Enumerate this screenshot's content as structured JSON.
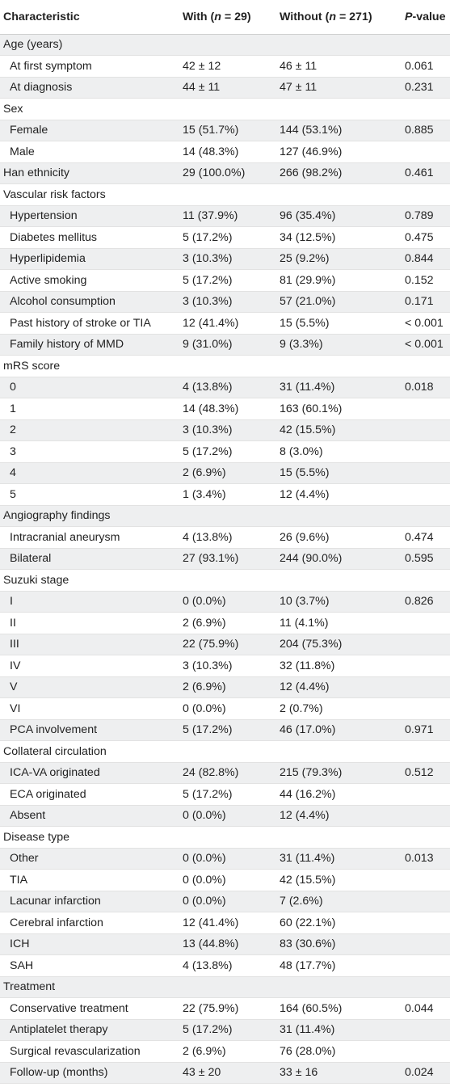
{
  "header": {
    "characteristic": "Characteristic",
    "with_prefix": "With (",
    "with_n": "n",
    "with_suffix": " = 29)",
    "without_prefix": "Without (",
    "without_n": "n",
    "without_suffix": " = 271)",
    "p_italic": "P",
    "p_suffix": "-value"
  },
  "rows": [
    {
      "label": "Age (years)",
      "type": "group",
      "with": "",
      "without": "",
      "p": ""
    },
    {
      "label": "At first symptom",
      "type": "item",
      "with": "42 ± 12",
      "without": "46 ± 11",
      "p": "0.061"
    },
    {
      "label": "At diagnosis",
      "type": "item",
      "with": "44 ± 11",
      "without": "47 ± 11",
      "p": "0.231"
    },
    {
      "label": "Sex",
      "type": "group",
      "with": "",
      "without": "",
      "p": ""
    },
    {
      "label": "Female",
      "type": "item",
      "with": "15 (51.7%)",
      "without": "144 (53.1%)",
      "p": "0.885"
    },
    {
      "label": "Male",
      "type": "item",
      "with": "14 (48.3%)",
      "without": "127 (46.9%)",
      "p": ""
    },
    {
      "label": "Han ethnicity",
      "type": "group",
      "with": "29 (100.0%)",
      "without": "266 (98.2%)",
      "p": "0.461"
    },
    {
      "label": "Vascular risk factors",
      "type": "group",
      "with": "",
      "without": "",
      "p": ""
    },
    {
      "label": "Hypertension",
      "type": "item",
      "with": "11 (37.9%)",
      "without": "96 (35.4%)",
      "p": "0.789"
    },
    {
      "label": "Diabetes mellitus",
      "type": "item",
      "with": "5 (17.2%)",
      "without": "34 (12.5%)",
      "p": "0.475"
    },
    {
      "label": "Hyperlipidemia",
      "type": "item",
      "with": "3 (10.3%)",
      "without": "25 (9.2%)",
      "p": "0.844"
    },
    {
      "label": "Active smoking",
      "type": "item",
      "with": "5 (17.2%)",
      "without": "81 (29.9%)",
      "p": "0.152"
    },
    {
      "label": "Alcohol consumption",
      "type": "item",
      "with": "3 (10.3%)",
      "without": "57 (21.0%)",
      "p": "0.171"
    },
    {
      "label": "Past history of stroke or TIA",
      "type": "item",
      "with": "12 (41.4%)",
      "without": "15 (5.5%)",
      "p": "< 0.001"
    },
    {
      "label": "Family history of MMD",
      "type": "item",
      "with": "9 (31.0%)",
      "without": "9 (3.3%)",
      "p": "< 0.001"
    },
    {
      "label": "mRS score",
      "type": "group",
      "with": "",
      "without": "",
      "p": ""
    },
    {
      "label": "0",
      "type": "item",
      "with": "4 (13.8%)",
      "without": "31 (11.4%)",
      "p": "0.018"
    },
    {
      "label": "1",
      "type": "item",
      "with": "14 (48.3%)",
      "without": "163 (60.1%)",
      "p": ""
    },
    {
      "label": "2",
      "type": "item",
      "with": "3 (10.3%)",
      "without": "42 (15.5%)",
      "p": ""
    },
    {
      "label": "3",
      "type": "item",
      "with": "5 (17.2%)",
      "without": "8 (3.0%)",
      "p": ""
    },
    {
      "label": "4",
      "type": "item",
      "with": "2 (6.9%)",
      "without": "15 (5.5%)",
      "p": ""
    },
    {
      "label": "5",
      "type": "item",
      "with": "1 (3.4%)",
      "without": "12 (4.4%)",
      "p": ""
    },
    {
      "label": "Angiography findings",
      "type": "group",
      "with": "",
      "without": "",
      "p": ""
    },
    {
      "label": "Intracranial aneurysm",
      "type": "item",
      "with": "4 (13.8%)",
      "without": "26 (9.6%)",
      "p": "0.474"
    },
    {
      "label": "Bilateral",
      "type": "item",
      "with": "27 (93.1%)",
      "without": "244 (90.0%)",
      "p": "0.595"
    },
    {
      "label": "Suzuki stage",
      "type": "group",
      "with": "",
      "without": "",
      "p": ""
    },
    {
      "label": "I",
      "type": "item",
      "with": "0 (0.0%)",
      "without": "10 (3.7%)",
      "p": "0.826"
    },
    {
      "label": "II",
      "type": "item",
      "with": "2 (6.9%)",
      "without": "11 (4.1%)",
      "p": ""
    },
    {
      "label": "III",
      "type": "item",
      "with": "22 (75.9%)",
      "without": "204 (75.3%)",
      "p": ""
    },
    {
      "label": "IV",
      "type": "item",
      "with": "3 (10.3%)",
      "without": "32 (11.8%)",
      "p": ""
    },
    {
      "label": "V",
      "type": "item",
      "with": "2 (6.9%)",
      "without": "12 (4.4%)",
      "p": ""
    },
    {
      "label": "VI",
      "type": "item",
      "with": "0 (0.0%)",
      "without": "2 (0.7%)",
      "p": ""
    },
    {
      "label": "PCA involvement",
      "type": "item",
      "with": "5 (17.2%)",
      "without": "46 (17.0%)",
      "p": "0.971"
    },
    {
      "label": "Collateral circulation",
      "type": "group",
      "with": "",
      "without": "",
      "p": ""
    },
    {
      "label": "ICA-VA originated",
      "type": "item",
      "with": "24 (82.8%)",
      "without": "215 (79.3%)",
      "p": "0.512"
    },
    {
      "label": "ECA originated",
      "type": "item",
      "with": "5 (17.2%)",
      "without": "44 (16.2%)",
      "p": ""
    },
    {
      "label": "Absent",
      "type": "item",
      "with": "0 (0.0%)",
      "without": "12 (4.4%)",
      "p": ""
    },
    {
      "label": "Disease type",
      "type": "group",
      "with": "",
      "without": "",
      "p": ""
    },
    {
      "label": "Other",
      "type": "item",
      "with": "0 (0.0%)",
      "without": "31 (11.4%)",
      "p": "0.013"
    },
    {
      "label": "TIA",
      "type": "item",
      "with": "0 (0.0%)",
      "without": "42 (15.5%)",
      "p": ""
    },
    {
      "label": "Lacunar infarction",
      "type": "item",
      "with": "0 (0.0%)",
      "without": "7 (2.6%)",
      "p": ""
    },
    {
      "label": "Cerebral infarction",
      "type": "item",
      "with": "12 (41.4%)",
      "without": "60 (22.1%)",
      "p": ""
    },
    {
      "label": "ICH",
      "type": "item",
      "with": "13 (44.8%)",
      "without": "83 (30.6%)",
      "p": ""
    },
    {
      "label": "SAH",
      "type": "item",
      "with": "4 (13.8%)",
      "without": "48 (17.7%)",
      "p": ""
    },
    {
      "label": "Treatment",
      "type": "group",
      "with": "",
      "without": "",
      "p": ""
    },
    {
      "label": "Conservative treatment",
      "type": "item",
      "with": "22 (75.9%)",
      "without": "164 (60.5%)",
      "p": "0.044"
    },
    {
      "label": "Antiplatelet therapy",
      "type": "item",
      "with": "5 (17.2%)",
      "without": "31 (11.4%)",
      "p": ""
    },
    {
      "label": "Surgical revascularization",
      "type": "item",
      "with": "2 (6.9%)",
      "without": "76 (28.0%)",
      "p": ""
    },
    {
      "label": "Follow-up (months)",
      "type": "item",
      "with": "43 ± 20",
      "without": "33 ± 16",
      "p": "0.024"
    }
  ]
}
